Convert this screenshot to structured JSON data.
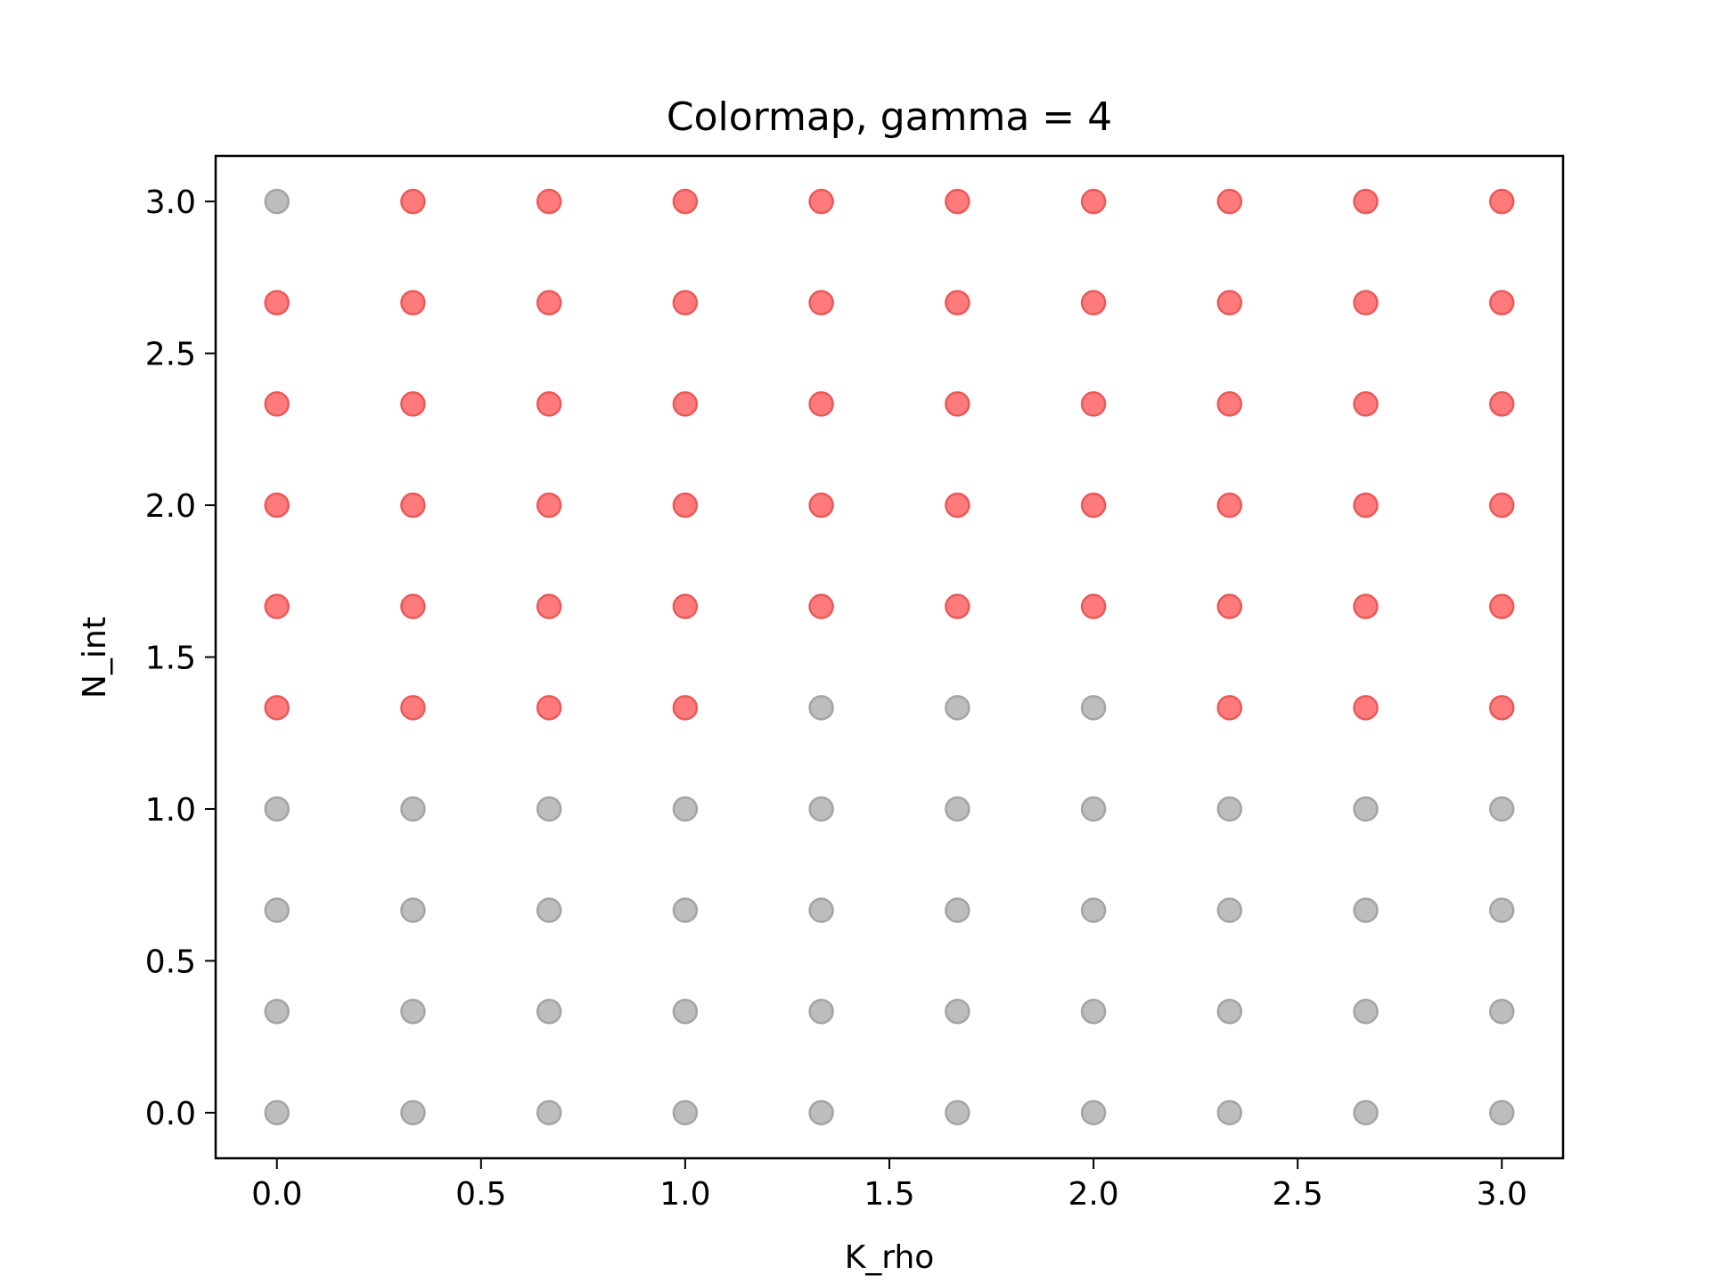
{
  "chart_data": {
    "type": "scatter",
    "title": "Colormap, gamma = 4",
    "xlabel": "K_rho",
    "ylabel": "N_int",
    "xlim": [
      -0.15,
      3.15
    ],
    "ylim": [
      -0.15,
      3.15
    ],
    "x_ticks": [
      "0.0",
      "0.5",
      "1.0",
      "1.5",
      "2.0",
      "2.5",
      "3.0"
    ],
    "y_ticks": [
      "0.0",
      "0.5",
      "1.0",
      "1.5",
      "2.0",
      "2.5",
      "3.0"
    ],
    "grid": false,
    "colors": {
      "red": "#ff7b7b",
      "red_edge": "#e85a5a",
      "gray": "#bdbdbd",
      "gray_edge": "#a4a4a4"
    },
    "grid_values": [
      0,
      0.3333,
      0.6667,
      1,
      1.3333,
      1.6667,
      2,
      2.3333,
      2.6667,
      3
    ],
    "rows": [
      {
        "y": 3,
        "classes": [
          "gray",
          "red",
          "red",
          "red",
          "red",
          "red",
          "red",
          "red",
          "red",
          "red"
        ]
      },
      {
        "y": 2.6667,
        "classes": [
          "red",
          "red",
          "red",
          "red",
          "red",
          "red",
          "red",
          "red",
          "red",
          "red"
        ]
      },
      {
        "y": 2.3333,
        "classes": [
          "red",
          "red",
          "red",
          "red",
          "red",
          "red",
          "red",
          "red",
          "red",
          "red"
        ]
      },
      {
        "y": 2,
        "classes": [
          "red",
          "red",
          "red",
          "red",
          "red",
          "red",
          "red",
          "red",
          "red",
          "red"
        ]
      },
      {
        "y": 1.6667,
        "classes": [
          "red",
          "red",
          "red",
          "red",
          "red",
          "red",
          "red",
          "red",
          "red",
          "red"
        ]
      },
      {
        "y": 1.3333,
        "classes": [
          "red",
          "red",
          "red",
          "red",
          "gray",
          "gray",
          "gray",
          "red",
          "red",
          "red"
        ]
      },
      {
        "y": 1,
        "classes": [
          "gray",
          "gray",
          "gray",
          "gray",
          "gray",
          "gray",
          "gray",
          "gray",
          "gray",
          "gray"
        ]
      },
      {
        "y": 0.6667,
        "classes": [
          "gray",
          "gray",
          "gray",
          "gray",
          "gray",
          "gray",
          "gray",
          "gray",
          "gray",
          "gray"
        ]
      },
      {
        "y": 0.3333,
        "classes": [
          "gray",
          "gray",
          "gray",
          "gray",
          "gray",
          "gray",
          "gray",
          "gray",
          "gray",
          "gray"
        ]
      },
      {
        "y": 0,
        "classes": [
          "gray",
          "gray",
          "gray",
          "gray",
          "gray",
          "gray",
          "gray",
          "gray",
          "gray",
          "gray"
        ]
      }
    ]
  }
}
